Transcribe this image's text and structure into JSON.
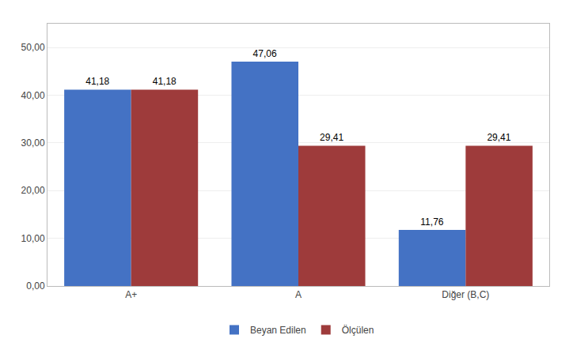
{
  "chart_data": {
    "type": "bar",
    "categories": [
      "A+",
      "A",
      "Diğer (B,C)"
    ],
    "series": [
      {
        "name": "Beyan Edilen",
        "color": "#4472C4",
        "values": [
          41.18,
          47.06,
          11.76
        ],
        "value_labels": [
          "41,18",
          "47,06",
          "11,76"
        ]
      },
      {
        "name": "Ölçülen",
        "color": "#9E3B3B",
        "values": [
          41.18,
          29.41,
          29.41
        ],
        "value_labels": [
          "41,18",
          "29,41",
          "29,41"
        ]
      }
    ],
    "ylim": [
      0,
      55
    ],
    "yticks": [
      {
        "value": 0,
        "label": "0,00"
      },
      {
        "value": 10,
        "label": "10,00"
      },
      {
        "value": 20,
        "label": "20,00"
      },
      {
        "value": 30,
        "label": "30,00"
      },
      {
        "value": 40,
        "label": "40,00"
      },
      {
        "value": 50,
        "label": "50,00"
      }
    ],
    "grid": true,
    "legend": "bottom",
    "data_labels": true
  }
}
